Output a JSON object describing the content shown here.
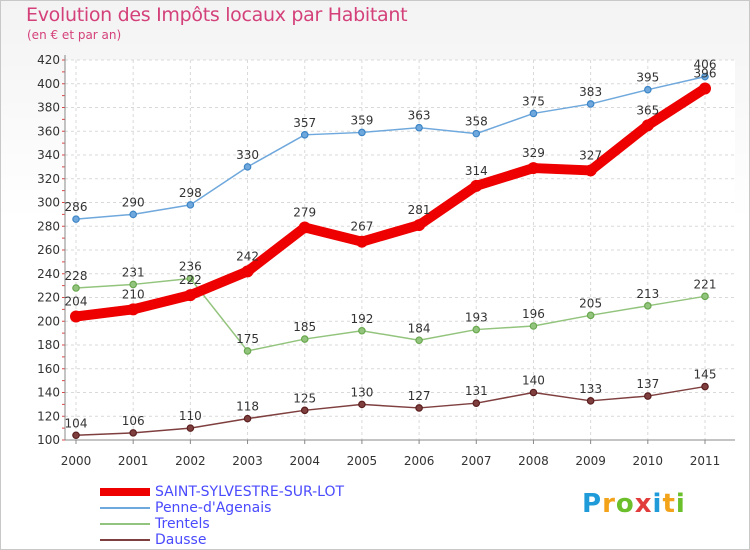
{
  "header": {
    "title": "Evolution des Impôts locaux par Habitant",
    "subtitle": "(en € et par an)"
  },
  "logo": {
    "text": "Proxiti",
    "colors": [
      "#1e9bd8",
      "#f2a31a",
      "#6bbf2a",
      "#e23b3b",
      "#1e9bd8",
      "#f2a31a",
      "#6bbf2a"
    ]
  },
  "chart_data": {
    "type": "line",
    "title": "Evolution des Impôts locaux par Habitant",
    "subtitle": "(en € et par an)",
    "x": [
      "2000",
      "2001",
      "2002",
      "2003",
      "2004",
      "2005",
      "2006",
      "2007",
      "2008",
      "2009",
      "2010",
      "2011"
    ],
    "ylim": [
      100,
      420
    ],
    "yticks": [
      100,
      120,
      140,
      160,
      180,
      200,
      220,
      240,
      260,
      280,
      300,
      320,
      340,
      360,
      380,
      400,
      420
    ],
    "grid": true,
    "legend_position": "bottom-left",
    "series": [
      {
        "name": "SAINT-SYLVESTRE-SUR-LOT",
        "color": "#ee0000",
        "thick": true,
        "values": [
          204,
          210,
          222,
          242,
          279,
          267,
          281,
          314,
          329,
          327,
          365,
          396
        ]
      },
      {
        "name": "Penne-d'Agenais",
        "color": "#6fa8dc",
        "marker": "#3d85c6",
        "values": [
          286,
          290,
          298,
          330,
          357,
          359,
          363,
          358,
          375,
          383,
          395,
          406
        ]
      },
      {
        "name": "Trentels",
        "color": "#93c47d",
        "marker": "#6aa84f",
        "values": [
          228,
          231,
          236,
          175,
          185,
          192,
          184,
          193,
          196,
          205,
          213,
          221
        ]
      },
      {
        "name": "Dausse",
        "color": "#7f3f3f",
        "marker": "#5b1f1f",
        "values": [
          104,
          106,
          110,
          118,
          125,
          130,
          127,
          131,
          140,
          133,
          137,
          145
        ]
      }
    ]
  }
}
